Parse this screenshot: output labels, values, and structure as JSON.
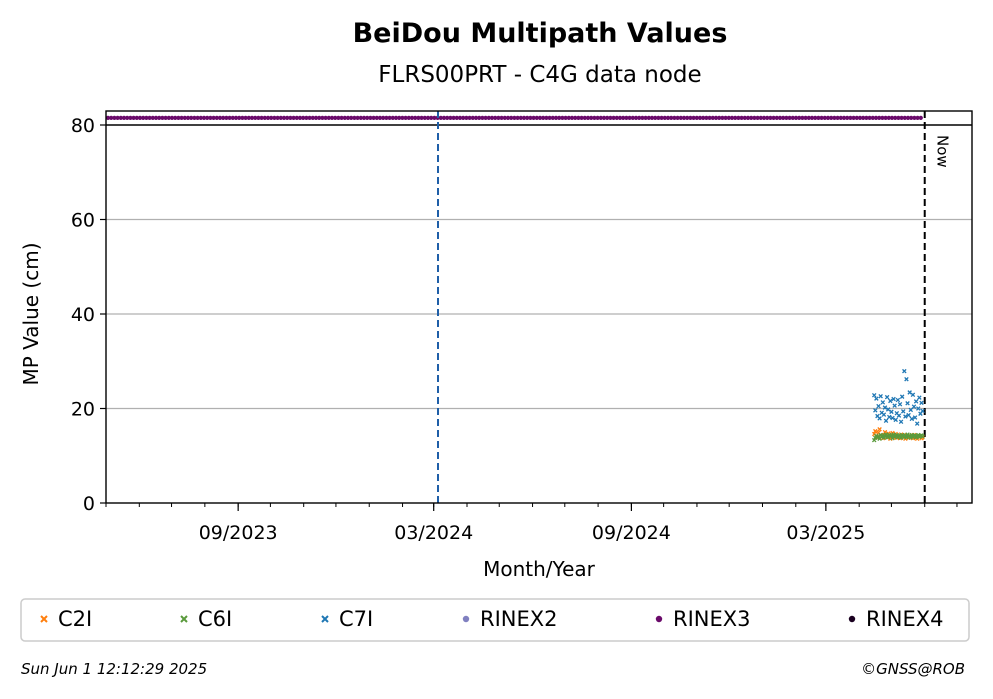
{
  "chart_data": {
    "type": "scatter",
    "title": "BeiDou Multipath Values",
    "subtitle": "FLRS00PRT - C4G data node",
    "xlabel": "Month/Year",
    "ylabel": "MP Value (cm)",
    "xlim": [
      "2023-05-01",
      "2025-07-15"
    ],
    "ylim": [
      0,
      82
    ],
    "y_ticks": [
      0,
      20,
      40,
      60,
      80
    ],
    "x_ticks": [
      {
        "date": "2023-09-01",
        "label": "09/2023"
      },
      {
        "date": "2024-03-01",
        "label": "03/2024"
      },
      {
        "date": "2024-09-01",
        "label": "09/2024"
      },
      {
        "date": "2025-03-01",
        "label": "03/2025"
      }
    ],
    "grid": "y",
    "legend_position": "bottom",
    "reference_lines": [
      {
        "date": "2024-03-05",
        "color": "#1f5fa8",
        "style": "dashed"
      },
      {
        "date": "2025-06-01",
        "color": "#000000",
        "style": "dashed",
        "label": "Now"
      }
    ],
    "rinex_band": {
      "value": 81.5,
      "start": "2023-05-01",
      "end": "2025-05-31",
      "series": "RINEX3"
    },
    "series": [
      {
        "name": "C2I",
        "color": "#ff7f0e",
        "marker": "x",
        "points": [
          [
            "2025-04-15",
            14.6
          ],
          [
            "2025-04-16",
            15.2
          ],
          [
            "2025-04-17",
            14.1
          ],
          [
            "2025-04-18",
            13.8
          ],
          [
            "2025-04-19",
            14.9
          ],
          [
            "2025-04-20",
            15.6
          ],
          [
            "2025-04-21",
            14.3
          ],
          [
            "2025-04-22",
            14.0
          ],
          [
            "2025-04-23",
            13.7
          ],
          [
            "2025-04-24",
            14.4
          ],
          [
            "2025-04-25",
            15.0
          ],
          [
            "2025-04-26",
            14.2
          ],
          [
            "2025-04-27",
            13.9
          ],
          [
            "2025-04-28",
            14.7
          ],
          [
            "2025-04-29",
            14.1
          ],
          [
            "2025-04-30",
            13.6
          ],
          [
            "2025-05-01",
            14.5
          ],
          [
            "2025-05-02",
            14.8
          ],
          [
            "2025-05-03",
            13.9
          ],
          [
            "2025-05-04",
            14.2
          ],
          [
            "2025-05-05",
            14.6
          ],
          [
            "2025-05-06",
            13.8
          ],
          [
            "2025-05-07",
            14.0
          ],
          [
            "2025-05-08",
            14.3
          ],
          [
            "2025-05-09",
            13.7
          ],
          [
            "2025-05-10",
            14.5
          ],
          [
            "2025-05-11",
            14.1
          ],
          [
            "2025-05-12",
            13.9
          ],
          [
            "2025-05-13",
            14.4
          ],
          [
            "2025-05-14",
            13.6
          ],
          [
            "2025-05-15",
            14.2
          ],
          [
            "2025-05-16",
            14.0
          ],
          [
            "2025-05-17",
            13.8
          ],
          [
            "2025-05-18",
            14.3
          ],
          [
            "2025-05-19",
            13.9
          ],
          [
            "2025-05-20",
            14.1
          ],
          [
            "2025-05-21",
            13.7
          ],
          [
            "2025-05-22",
            14.4
          ],
          [
            "2025-05-23",
            13.8
          ],
          [
            "2025-05-24",
            14.0
          ],
          [
            "2025-05-25",
            13.6
          ],
          [
            "2025-05-26",
            14.2
          ],
          [
            "2025-05-27",
            13.9
          ],
          [
            "2025-05-28",
            14.1
          ],
          [
            "2025-05-29",
            13.7
          ],
          [
            "2025-05-30",
            13.9
          ]
        ]
      },
      {
        "name": "C6I",
        "color": "#5a9a3c",
        "marker": "x",
        "points": [
          [
            "2025-04-15",
            13.3
          ],
          [
            "2025-04-16",
            13.8
          ],
          [
            "2025-04-17",
            14.2
          ],
          [
            "2025-04-18",
            13.9
          ],
          [
            "2025-04-19",
            14.1
          ],
          [
            "2025-04-20",
            13.6
          ],
          [
            "2025-04-21",
            14.4
          ],
          [
            "2025-04-22",
            14.0
          ],
          [
            "2025-04-23",
            14.3
          ],
          [
            "2025-04-24",
            13.8
          ],
          [
            "2025-04-25",
            14.1
          ],
          [
            "2025-04-26",
            14.5
          ],
          [
            "2025-04-27",
            14.2
          ],
          [
            "2025-04-28",
            13.9
          ],
          [
            "2025-04-29",
            14.4
          ],
          [
            "2025-04-30",
            14.1
          ],
          [
            "2025-05-01",
            14.3
          ],
          [
            "2025-05-02",
            13.7
          ],
          [
            "2025-05-03",
            14.5
          ],
          [
            "2025-05-04",
            14.0
          ],
          [
            "2025-05-05",
            14.2
          ],
          [
            "2025-05-06",
            14.4
          ],
          [
            "2025-05-07",
            13.9
          ],
          [
            "2025-05-08",
            14.3
          ],
          [
            "2025-05-09",
            14.1
          ],
          [
            "2025-05-10",
            13.8
          ],
          [
            "2025-05-11",
            14.4
          ],
          [
            "2025-05-12",
            14.2
          ],
          [
            "2025-05-13",
            14.0
          ],
          [
            "2025-05-14",
            14.3
          ],
          [
            "2025-05-15",
            13.9
          ],
          [
            "2025-05-16",
            14.5
          ],
          [
            "2025-05-17",
            14.1
          ],
          [
            "2025-05-18",
            14.2
          ],
          [
            "2025-05-19",
            13.8
          ],
          [
            "2025-05-20",
            14.4
          ],
          [
            "2025-05-21",
            14.0
          ],
          [
            "2025-05-22",
            14.2
          ],
          [
            "2025-05-23",
            14.3
          ],
          [
            "2025-05-24",
            13.9
          ],
          [
            "2025-05-25",
            14.1
          ],
          [
            "2025-05-26",
            14.4
          ],
          [
            "2025-05-27",
            14.0
          ],
          [
            "2025-05-28",
            14.2
          ],
          [
            "2025-05-29",
            14.3
          ],
          [
            "2025-05-30",
            14.1
          ]
        ]
      },
      {
        "name": "C7I",
        "color": "#1f77b4",
        "marker": "x",
        "points": [
          [
            "2025-04-15",
            22.8
          ],
          [
            "2025-04-16",
            19.6
          ],
          [
            "2025-04-17",
            22.1
          ],
          [
            "2025-04-18",
            18.4
          ],
          [
            "2025-04-19",
            20.5
          ],
          [
            "2025-04-20",
            17.9
          ],
          [
            "2025-04-21",
            22.6
          ],
          [
            "2025-04-22",
            19.1
          ],
          [
            "2025-04-23",
            21.3
          ],
          [
            "2025-04-24",
            18.7
          ],
          [
            "2025-04-25",
            20.2
          ],
          [
            "2025-04-26",
            17.4
          ],
          [
            "2025-04-27",
            22.4
          ],
          [
            "2025-04-28",
            19.8
          ],
          [
            "2025-04-29",
            18.2
          ],
          [
            "2025-04-30",
            21.6
          ],
          [
            "2025-05-01",
            19.3
          ],
          [
            "2025-05-02",
            18.0
          ],
          [
            "2025-05-03",
            22.0
          ],
          [
            "2025-05-04",
            20.6
          ],
          [
            "2025-05-05",
            17.6
          ],
          [
            "2025-05-06",
            19.0
          ],
          [
            "2025-05-07",
            21.8
          ],
          [
            "2025-05-08",
            18.5
          ],
          [
            "2025-05-09",
            20.9
          ],
          [
            "2025-05-10",
            17.2
          ],
          [
            "2025-05-11",
            22.5
          ],
          [
            "2025-05-12",
            19.4
          ],
          [
            "2025-05-13",
            27.9
          ],
          [
            "2025-05-14",
            18.3
          ],
          [
            "2025-05-15",
            26.2
          ],
          [
            "2025-05-16",
            21.1
          ],
          [
            "2025-05-17",
            18.6
          ],
          [
            "2025-05-18",
            23.4
          ],
          [
            "2025-05-19",
            19.7
          ],
          [
            "2025-05-20",
            17.8
          ],
          [
            "2025-05-21",
            22.9
          ],
          [
            "2025-05-22",
            20.4
          ],
          [
            "2025-05-23",
            18.1
          ],
          [
            "2025-05-24",
            21.5
          ],
          [
            "2025-05-25",
            16.8
          ],
          [
            "2025-05-26",
            20.0
          ],
          [
            "2025-05-27",
            22.3
          ],
          [
            "2025-05-28",
            18.9
          ],
          [
            "2025-05-29",
            21.2
          ],
          [
            "2025-05-30",
            19.5
          ]
        ]
      },
      {
        "name": "RINEX2",
        "color": "#8080c0",
        "marker": "o",
        "points": []
      },
      {
        "name": "RINEX3",
        "color": "#6a0a6a",
        "marker": "o",
        "points": []
      },
      {
        "name": "RINEX4",
        "color": "#1a0020",
        "marker": "o",
        "points": []
      }
    ]
  },
  "footer": {
    "timestamp": "Sun Jun  1 12:12:29 2025",
    "credit": "©GNSS@ROB"
  }
}
